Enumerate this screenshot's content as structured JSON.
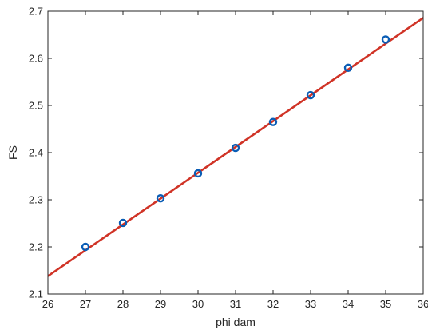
{
  "chart_data": {
    "type": "scatter",
    "title": "",
    "xlabel": "phi dam",
    "ylabel": "FS",
    "xlim": [
      26,
      36
    ],
    "ylim": [
      2.1,
      2.7
    ],
    "x_ticks": [
      26,
      27,
      28,
      29,
      30,
      31,
      32,
      33,
      34,
      35,
      36
    ],
    "x_tick_labels": [
      "26",
      "27",
      "28",
      "29",
      "30",
      "31",
      "32",
      "33",
      "34",
      "35",
      "36"
    ],
    "y_ticks": [
      2.1,
      2.2,
      2.3,
      2.4,
      2.5,
      2.6,
      2.7
    ],
    "y_tick_labels": [
      "2.1",
      "2.2",
      "2.3",
      "2.4",
      "2.5",
      "2.6",
      "2.7"
    ],
    "grid": false,
    "legend": "none",
    "series": [
      {
        "mark": "circle",
        "color": "#0a5db5",
        "x": [
          27,
          28,
          29,
          30,
          31,
          32,
          33,
          34,
          35
        ],
        "y": [
          2.2,
          2.251,
          2.303,
          2.356,
          2.41,
          2.465,
          2.522,
          2.58,
          2.64
        ]
      },
      {
        "mark": "line",
        "color": "#d03326",
        "x": [
          26,
          36
        ],
        "y": [
          2.138,
          2.686
        ]
      }
    ]
  }
}
